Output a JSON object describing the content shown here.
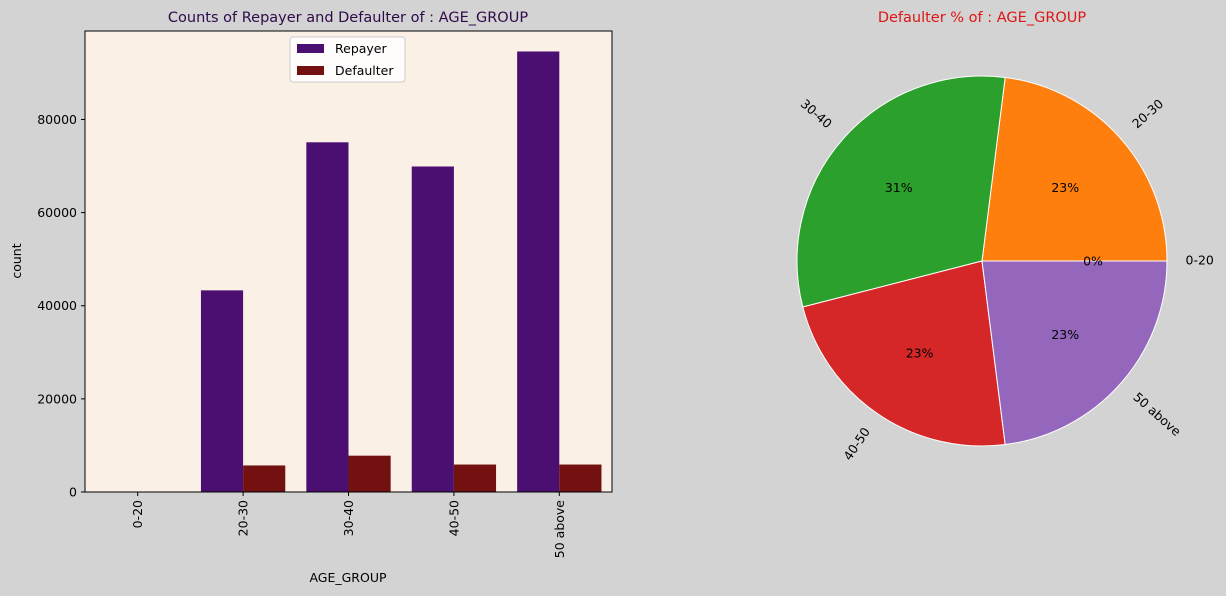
{
  "figure": {
    "background": "#d3d3d3"
  },
  "chart_data": [
    {
      "type": "bar",
      "title": "Counts of Repayer and Defaulter of : AGE_GROUP",
      "title_color": "#2e0a4a",
      "xlabel": "AGE_GROUP",
      "ylabel": "count",
      "plot_background": "#faf0e6",
      "categories": [
        "0-20",
        "20-30",
        "30-40",
        "40-50",
        "50 above"
      ],
      "series": [
        {
          "name": "Repayer",
          "color": "#4b0f72",
          "values": [
            0,
            43300,
            75100,
            69900,
            94600
          ]
        },
        {
          "name": "Defaulter",
          "color": "#731111",
          "values": [
            0,
            5700,
            7800,
            5900,
            5900
          ]
        }
      ],
      "ylim": [
        0,
        99000
      ],
      "yticks": [
        0,
        20000,
        40000,
        60000,
        80000
      ],
      "ytick_labels": [
        "0",
        "20000",
        "40000",
        "60000",
        "80000"
      ],
      "xtick_rotation": "vertical",
      "legend": "top-center",
      "grid": false
    },
    {
      "type": "pie",
      "title": "Defaulter % of : AGE_GROUP",
      "title_color": "#dd1515",
      "labels": [
        "0-20",
        "20-30",
        "30-40",
        "40-50",
        "50 above"
      ],
      "values": [
        0,
        23,
        31,
        23,
        23
      ],
      "pct_labels": [
        "0%",
        "23%",
        "31%",
        "23%",
        "23%"
      ],
      "colors": [
        "#1f77b4",
        "#ff7f0e",
        "#2ca02c",
        "#d62728",
        "#9467bd"
      ],
      "start_angle": 0,
      "direction": "counterclockwise",
      "rotated_labels": true
    }
  ]
}
